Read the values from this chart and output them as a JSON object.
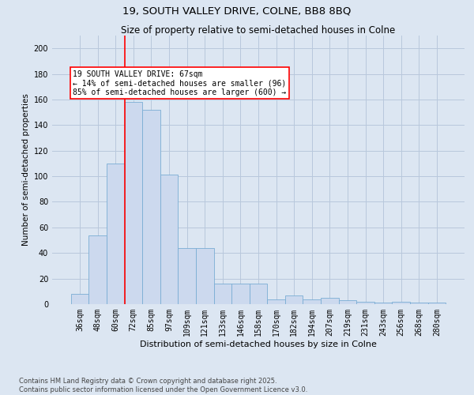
{
  "title_line1": "19, SOUTH VALLEY DRIVE, COLNE, BB8 8BQ",
  "title_line2": "Size of property relative to semi-detached houses in Colne",
  "xlabel": "Distribution of semi-detached houses by size in Colne",
  "ylabel": "Number of semi-detached properties",
  "categories": [
    "36sqm",
    "48sqm",
    "60sqm",
    "72sqm",
    "85sqm",
    "97sqm",
    "109sqm",
    "121sqm",
    "133sqm",
    "146sqm",
    "158sqm",
    "170sqm",
    "182sqm",
    "194sqm",
    "207sqm",
    "219sqm",
    "231sqm",
    "243sqm",
    "256sqm",
    "268sqm",
    "280sqm"
  ],
  "values": [
    8,
    54,
    110,
    158,
    152,
    101,
    44,
    44,
    16,
    16,
    16,
    4,
    7,
    4,
    5,
    3,
    2,
    1,
    2,
    1,
    1
  ],
  "bar_color": "#ccd9ee",
  "bar_edge_color": "#7aadd4",
  "grid_color": "#b8c8dc",
  "background_color": "#dce6f2",
  "vline_color": "red",
  "vline_x_index": 2.5,
  "annotation_text": "19 SOUTH VALLEY DRIVE: 67sqm\n← 14% of semi-detached houses are smaller (96)\n85% of semi-detached houses are larger (600) →",
  "annotation_box_color": "white",
  "annotation_box_edge": "red",
  "ylim": [
    0,
    210
  ],
  "yticks": [
    0,
    20,
    40,
    60,
    80,
    100,
    120,
    140,
    160,
    180,
    200
  ],
  "title_fontsize": 9.5,
  "subtitle_fontsize": 8.5,
  "xlabel_fontsize": 8,
  "ylabel_fontsize": 7.5,
  "tick_fontsize": 7,
  "annot_fontsize": 7,
  "footer_fontsize": 6,
  "footer_line1": "Contains HM Land Registry data © Crown copyright and database right 2025.",
  "footer_line2": "Contains public sector information licensed under the Open Government Licence v3.0."
}
